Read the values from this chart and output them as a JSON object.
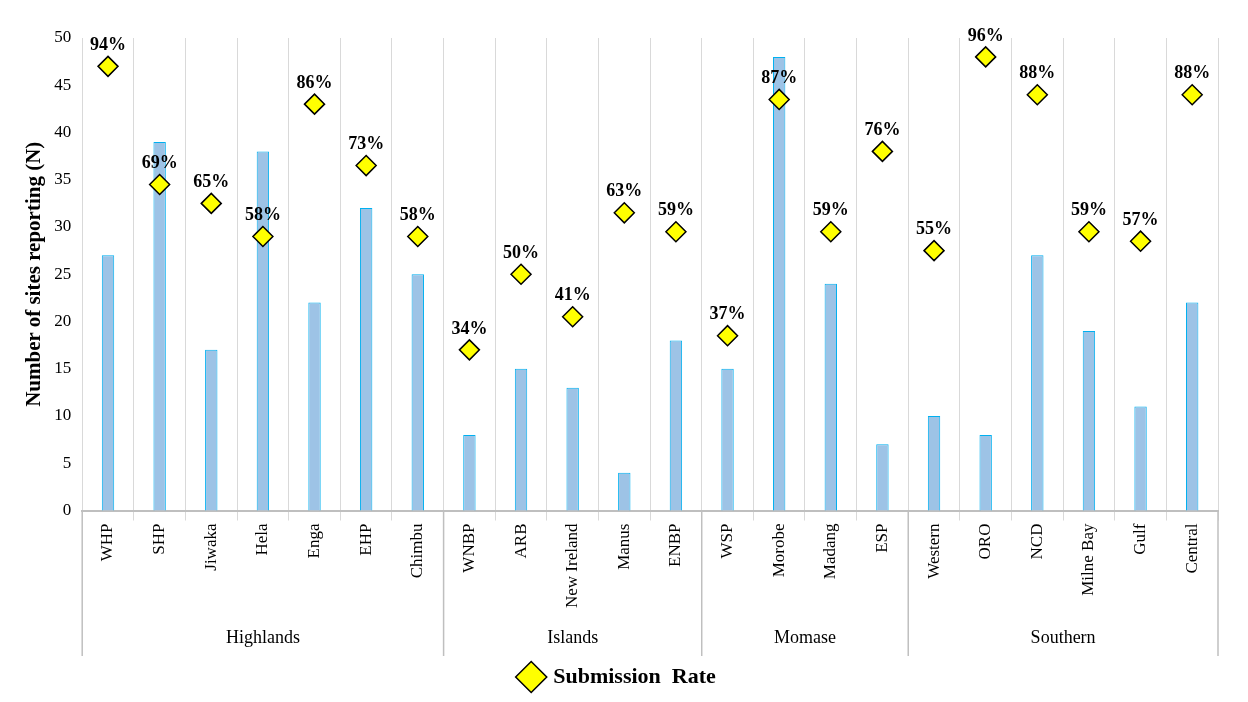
{
  "chart_data": {
    "type": "bar",
    "ylabel": "Number of sites reporting (N)",
    "categories": [
      "WHP",
      "SHP",
      "Jiwaka",
      "Hela",
      "Enga",
      "EHP",
      "Chimbu",
      "WNBP",
      "ARB",
      "New Ireland",
      "Manus",
      "ENBP",
      "WSP",
      "Morobe",
      "Madang",
      "ESP",
      "Western",
      "ORO",
      "NCD",
      "Milne Bay",
      "Gulf",
      "Central"
    ],
    "annotations": [
      "Highlands",
      "Islands",
      "Momase",
      "Southern"
    ],
    "series": [
      {
        "color": "#9dc3e6",
        "values": [
          27,
          39,
          17,
          38,
          22,
          32,
          25,
          8,
          15,
          13,
          4,
          18,
          15,
          48,
          24,
          7,
          10,
          8,
          27,
          19,
          11,
          22
        ]
      },
      {
        "type": "scatter",
        "name": "Submission  Rate",
        "color": "#ffff00",
        "axis": "y2",
        "marker": "diamond",
        "values": [
          94,
          69,
          65,
          58,
          86,
          73,
          58,
          34,
          50,
          41,
          63,
          59,
          37,
          87,
          59,
          76,
          55,
          96,
          88,
          59,
          57,
          88
        ],
        "value_labels": [
          "94%",
          "69%",
          "65%",
          "58%",
          "86%",
          "73%",
          "58%",
          "34%",
          "50%",
          "41%",
          "63%",
          "59%",
          "37%",
          "87%",
          "59%",
          "76%",
          "55%",
          "96%",
          "88%",
          "59%",
          "57%",
          "88%"
        ]
      }
    ],
    "ylim": [
      0,
      50
    ],
    "yticks": [
      0,
      5,
      10,
      15,
      20,
      25,
      30,
      35,
      40,
      45,
      50
    ],
    "y2lim": [
      0,
      100
    ],
    "grid": "x",
    "legend": "bottom"
  }
}
